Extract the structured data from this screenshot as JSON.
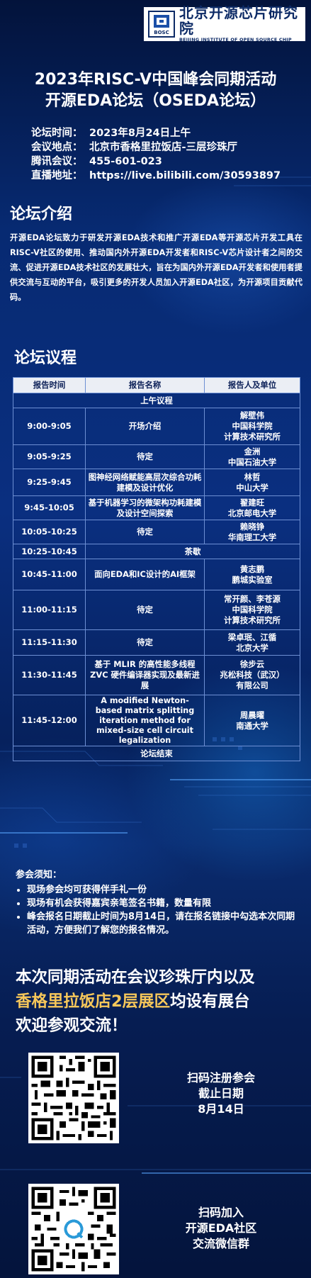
{
  "logo": {
    "cn": "北京开源芯片研究院",
    "en": "BEIJING INSTITUTE OF OPEN SOURCE CHIP",
    "mark": "BOSC"
  },
  "title": {
    "line1": "2023年RISC-V中国峰会同期活动",
    "line2": "开源EDA论坛（OSEDA论坛）"
  },
  "info": [
    {
      "label": "论坛时间：",
      "value": "2023年8月24日上午"
    },
    {
      "label": "会议地点：",
      "value": "北京市香格里拉饭店-三层珍珠厅"
    },
    {
      "label": "腾讯会议：",
      "value": "455-601-023"
    },
    {
      "label": "直播地址：",
      "value": "https://live.bilibili.com/30593897"
    }
  ],
  "intro": {
    "heading": "论坛介绍",
    "text": "开源EDA论坛致力于研发开源EDA技术和推广开源EDA等开源芯片开发工具在RISC-V社区的使用、推动国内外开源EDA开发者和RISC-V芯片设计者之间的交流、促进开源EDA技术社区的发展壮大，旨在为国内外开源EDA开发者和使用者提供交流与互动的平台，吸引更多的开发人员加入开源EDA社区，为开源项目贡献代码。"
  },
  "agenda": {
    "heading": "论坛议程",
    "headers": [
      "报告时间",
      "报告名称",
      "报告人及单位"
    ],
    "morning": "上午议程",
    "rows": [
      {
        "time": "9:00-9:05",
        "topic": "开场介绍",
        "speaker": [
          "解壁伟",
          "中国科学院",
          "计算技术研究所"
        ]
      },
      {
        "time": "9:05-9:25",
        "topic": "待定",
        "speaker": [
          "金洲",
          "中国石油大学"
        ]
      },
      {
        "time": "9:25-9:45",
        "topic": "图神经网络赋能高层次综合功耗建模及设计优化",
        "speaker": [
          "林哲",
          "中山大学"
        ]
      },
      {
        "time": "9:45-10:05",
        "topic": "基于机器学习的微架构功耗建模及设计空间探索",
        "speaker": [
          "翟建旺",
          "北京邮电大学"
        ]
      },
      {
        "time": "10:05-10:25",
        "topic": "待定",
        "speaker": [
          "赖晓铮",
          "华南理工大学"
        ]
      }
    ],
    "break": {
      "time": "10:25-10:45",
      "label": "茶歇"
    },
    "rows2": [
      {
        "time": "10:45-11:00",
        "topic": "面向EDA和IC设计的AI框架",
        "speaker": [
          "黄志鹏",
          "鹏城实验室"
        ]
      },
      {
        "time": "11:00-11:15",
        "topic": "待定",
        "speaker": [
          "常开颜、李苍源",
          "中国科学院",
          "计算技术研究所"
        ]
      },
      {
        "time": "11:15-11:30",
        "topic": "待定",
        "speaker": [
          "梁卓珉、江循",
          "北京大学"
        ]
      },
      {
        "time": "11:30-11:45",
        "topic": "基于 MLIR 的高性能多线程 ZVC 硬件编译器实现及最新进展",
        "speaker": [
          "徐步云",
          "兆松科技（武汉）",
          "有限公司"
        ]
      },
      {
        "time": "11:45-12:00",
        "topic": "A modified Newton-based matrix splitting iteration method for mixed-size cell circuit legalization",
        "speaker": [
          "周晨曜",
          "南通大学"
        ]
      }
    ],
    "end": "论坛结束"
  },
  "notice": {
    "title": "参会须知：",
    "items": [
      "现场参会均可获得伴手礼一份",
      "现场有机会获得嘉宾亲笔签名书籍，数量有限",
      "峰会报名日期截止时间为8月14日，请在报名链接中勾选本次同期活动，方便我们了解您的报名情况。"
    ]
  },
  "promo": {
    "line1": "本次同期活动在会议珍珠厅内以及",
    "line2_gold": "香格里拉饭店2层展区",
    "line2_rest": "均设有展台",
    "line3": "欢迎参观交流！"
  },
  "qr1": {
    "caption": [
      "扫码注册参会",
      "截止日期",
      "8月14日"
    ],
    "icon": "qr-code"
  },
  "qr2": {
    "caption": [
      "扫码加入",
      "开源EDA社区",
      "交流微信群"
    ],
    "icon": "qr-code"
  }
}
